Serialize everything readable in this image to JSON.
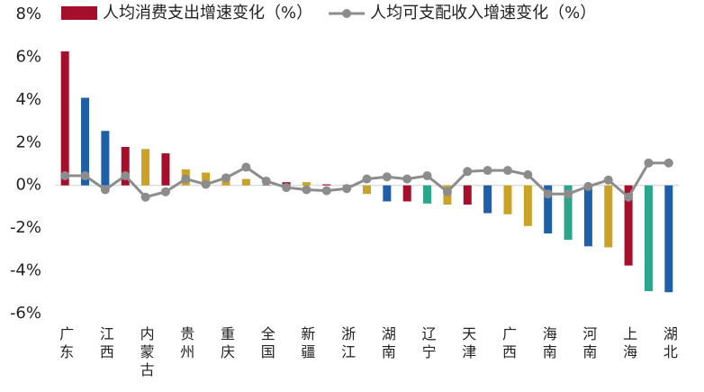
{
  "chart_data": {
    "type": "bar",
    "categories": [
      "广东",
      null,
      "江西",
      null,
      "内蒙古",
      null,
      "贵州",
      null,
      "重庆",
      null,
      "全国",
      null,
      "新疆",
      null,
      "浙江",
      null,
      "湖南",
      null,
      "辽宁",
      null,
      "天津",
      null,
      "广西",
      null,
      "海南",
      null,
      "河南",
      null,
      "上海",
      null,
      "湖北"
    ],
    "series": [
      {
        "name": "人均消费支出增速变化（%）",
        "type": "bar",
        "color": "#a50f2c",
        "colors": [
          "#a50f2c",
          "#1f5fa8",
          "#1f5fa8",
          "#a50f2c",
          "#c9a227",
          "#a50f2c",
          "#c9a227",
          "#c9a227",
          "#c9a227",
          "#c9a227",
          "#a50f2c",
          "#a50f2c",
          "#c9a227",
          "#a50f2c",
          "#a50f2c",
          "#c9a227",
          "#1f5fa8",
          "#a50f2c",
          "#2ba68a",
          "#c9a227",
          "#a50f2c",
          "#1f5fa8",
          "#c9a227",
          "#c9a227",
          "#1f5fa8",
          "#2ba68a",
          "#1f5fa8",
          "#c9a227",
          "#a50f2c",
          "#2ba68a",
          "#1f5fa8"
        ],
        "values": [
          6.27,
          4.1,
          2.55,
          1.8,
          1.7,
          1.5,
          0.75,
          0.6,
          0.3,
          0.3,
          0.02,
          0.15,
          0.15,
          0.05,
          0.02,
          -0.4,
          -0.75,
          -0.75,
          -0.85,
          -0.9,
          -0.9,
          -1.3,
          -1.35,
          -1.9,
          -2.25,
          -2.55,
          -2.85,
          -2.9,
          -3.75,
          -4.95,
          -5.0
        ]
      },
      {
        "name": "人均可支配收入增速变化（%）",
        "type": "line",
        "color": "#8c8c8c",
        "values": [
          0.45,
          0.45,
          -0.2,
          0.45,
          -0.55,
          -0.3,
          0.3,
          0.05,
          0.35,
          0.85,
          0.2,
          -0.1,
          -0.2,
          -0.25,
          -0.15,
          0.3,
          0.4,
          0.3,
          0.45,
          -0.3,
          0.65,
          0.7,
          0.7,
          0.5,
          -0.4,
          -0.4,
          -0.05,
          0.25,
          -0.55,
          1.05,
          1.05
        ]
      }
    ],
    "ylim": [
      -6,
      8
    ],
    "yticks": [
      {
        "value": -6,
        "label": "-6%"
      },
      {
        "value": -4,
        "label": "-4%"
      },
      {
        "value": -2,
        "label": "-2%"
      },
      {
        "value": 0,
        "label": "0%"
      },
      {
        "value": 2,
        "label": "2%"
      },
      {
        "value": 4,
        "label": "4%"
      },
      {
        "value": 6,
        "label": "6%"
      },
      {
        "value": 8,
        "label": "8%"
      }
    ],
    "grid": false,
    "legend": "top"
  }
}
